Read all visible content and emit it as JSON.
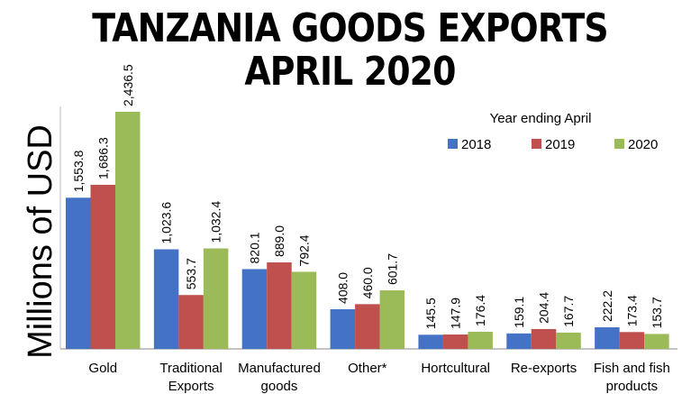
{
  "title_line1": "TANZANIA GOODS EXPORTS",
  "title_line2": "APRIL 2020",
  "chart_data": {
    "type": "bar",
    "title": "TANZANIA GOODS EXPORTS APRIL 2020",
    "ylabel": "Millions of USD",
    "xlabel": "",
    "legend_title": "Year ending April",
    "legend_position": "top-right",
    "ylim": [
      0,
      2600
    ],
    "grid": false,
    "categories": [
      "Gold",
      "Traditional\nExports",
      "Manufactured\ngoods",
      "Other*",
      "Hortcultural",
      "Re-exports",
      "Fish and fish\nproducts"
    ],
    "series": [
      {
        "name": "2018",
        "color": "#4472C4",
        "values": [
          1553.8,
          1023.6,
          820.1,
          408.0,
          145.5,
          159.1,
          222.2
        ],
        "labels": [
          "1,553.8",
          "1,023.6",
          "820.1",
          "408.0",
          "145.5",
          "159.1",
          "222.2"
        ]
      },
      {
        "name": "2019",
        "color": "#C0504D",
        "values": [
          1686.3,
          553.7,
          889.0,
          460.0,
          147.9,
          204.4,
          173.4
        ],
        "labels": [
          "1,686.3",
          "553.7",
          "889.0",
          "460.0",
          "147.9",
          "204.4",
          "173.4"
        ]
      },
      {
        "name": "2020",
        "color": "#9BBB59",
        "values": [
          2436.5,
          1032.4,
          792.4,
          601.7,
          176.4,
          167.7,
          153.7
        ],
        "labels": [
          "2,436.5",
          "1,032.4",
          "792.4",
          "601.7",
          "176.4",
          "167.7",
          "153.7"
        ]
      }
    ]
  }
}
